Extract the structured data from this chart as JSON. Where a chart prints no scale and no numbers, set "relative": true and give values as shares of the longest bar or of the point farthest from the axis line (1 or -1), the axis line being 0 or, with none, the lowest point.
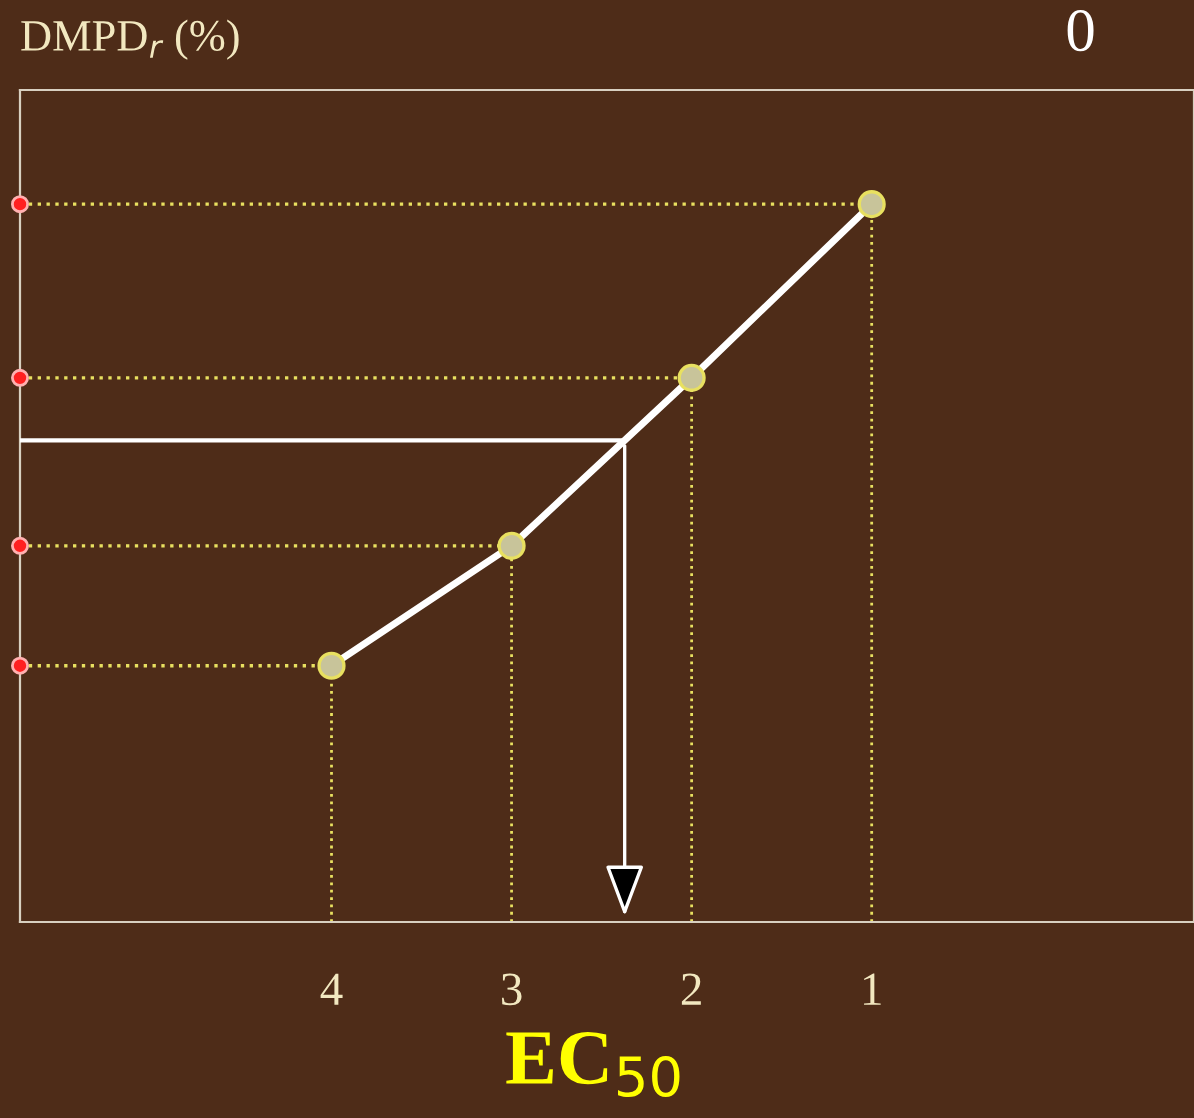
{
  "chart_data": {
    "type": "scatter",
    "relative": true,
    "xlabel": "EC$_{50}$",
    "ylabel": "DMPD$_{r}$ (%)",
    "categories": [
      "4",
      "3",
      "2",
      "1"
    ],
    "series": [
      {
        "color": "#c8c49a",
        "values": [
          0.357,
          0.524,
          0.758,
          1
        ]
      },
      {
        "type": "line",
        "color": "#ffffff",
        "marker": "none",
        "values": [
          0.357,
          0.524,
          0.758,
          1
        ]
      }
    ],
    "ref_lines": [
      {
        "axis": "y",
        "value": 0.671,
        "color": "#ffffff"
      },
      {
        "axis": "y",
        "value": 0.357,
        "color": "#e8e060",
        "line_style": "dotted"
      },
      {
        "axis": "y",
        "value": 0.524,
        "color": "#e8e060",
        "line_style": "dotted"
      },
      {
        "axis": "y",
        "value": 0.758,
        "color": "#e8e060",
        "line_style": "dotted"
      },
      {
        "axis": "y",
        "value": 1,
        "color": "#e8e060",
        "line_style": "dotted"
      }
    ],
    "marker": "circle",
    "grid": "x",
    "annotations": [
      "0"
    ]
  }
}
